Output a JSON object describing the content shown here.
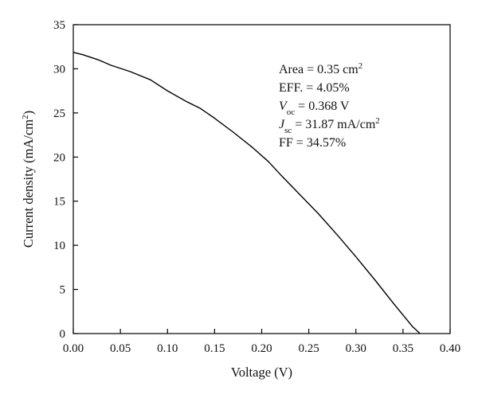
{
  "chart_data": {
    "type": "line",
    "xlabel": "Voltage (V)",
    "ylabel": {
      "text": "Current density (mA/cm",
      "sup": "2",
      "close": ")"
    },
    "xlim": [
      0.0,
      0.4
    ],
    "ylim": [
      0,
      35
    ],
    "x_ticks": [
      "0.00",
      "0.05",
      "0.10",
      "0.15",
      "0.20",
      "0.25",
      "0.30",
      "0.35",
      "0.40"
    ],
    "y_ticks": [
      "0",
      "5",
      "10",
      "15",
      "20",
      "25",
      "30",
      "35"
    ],
    "grid": false,
    "series": [
      {
        "color": "#000000",
        "points": [
          [
            0.0,
            31.87
          ],
          [
            0.01,
            31.6
          ],
          [
            0.027,
            31.0
          ],
          [
            0.04,
            30.4
          ],
          [
            0.06,
            29.7
          ],
          [
            0.082,
            28.75
          ],
          [
            0.1,
            27.5
          ],
          [
            0.12,
            26.3
          ],
          [
            0.135,
            25.5
          ],
          [
            0.15,
            24.4
          ],
          [
            0.17,
            22.8
          ],
          [
            0.19,
            21.1
          ],
          [
            0.207,
            19.5
          ],
          [
            0.22,
            18.0
          ],
          [
            0.24,
            15.8
          ],
          [
            0.26,
            13.6
          ],
          [
            0.28,
            11.2
          ],
          [
            0.3,
            8.7
          ],
          [
            0.32,
            6.1
          ],
          [
            0.34,
            3.4
          ],
          [
            0.36,
            0.8
          ],
          [
            0.368,
            0.0
          ]
        ]
      }
    ],
    "annotations": [
      {
        "parts": [
          {
            "t": "Area = 0.35 cm"
          },
          {
            "t": "2",
            "sup": true
          }
        ]
      },
      {
        "parts": [
          {
            "t": "EFF. = 4.05%"
          }
        ]
      },
      {
        "parts": [
          {
            "t": "V",
            "italic": true
          },
          {
            "t": "oc",
            "sub": true
          },
          {
            "t": " = 0.368 V"
          }
        ]
      },
      {
        "parts": [
          {
            "t": "J",
            "italic": true
          },
          {
            "t": "sc",
            "sub": true
          },
          {
            "t": " = 31.87 mA/cm"
          },
          {
            "t": "2",
            "sup": true
          }
        ]
      },
      {
        "parts": [
          {
            "t": "FF = 34.57%"
          }
        ]
      }
    ]
  }
}
